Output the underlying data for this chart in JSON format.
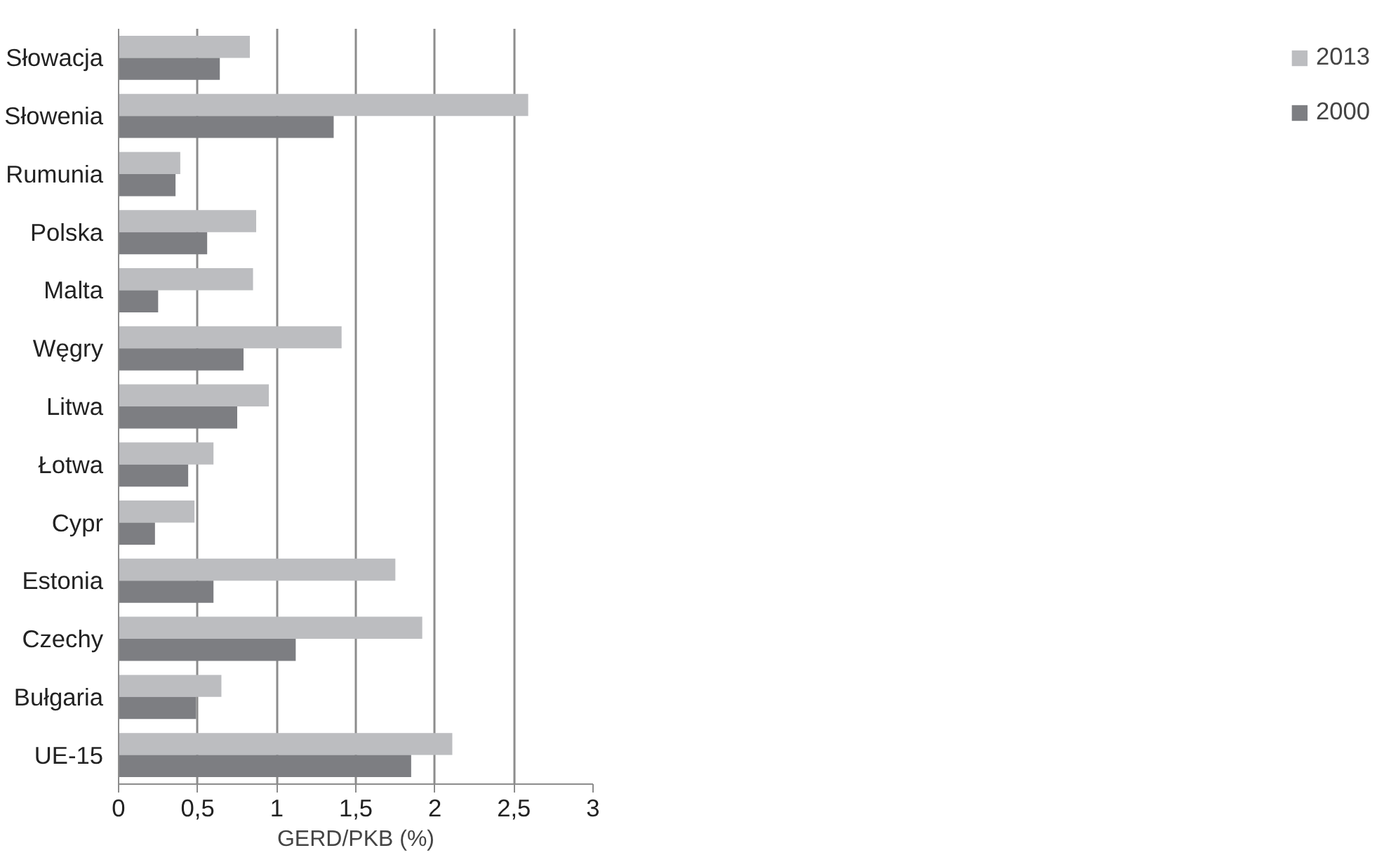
{
  "chart_data": {
    "type": "bar",
    "orientation": "horizontal",
    "xlabel": "GERD/PKB (%)",
    "categories": [
      "Słowacja",
      "Słowenia",
      "Rumunia",
      "Polska",
      "Malta",
      "Węgry",
      "Litwa",
      "Łotwa",
      "Cypr",
      "Estonia",
      "Czechy",
      "Bułgaria",
      "UE-15"
    ],
    "series": [
      {
        "name": "2013",
        "color": "#bcbdc0",
        "values": [
          0.83,
          2.59,
          0.39,
          0.87,
          0.85,
          1.41,
          0.95,
          0.6,
          0.48,
          1.75,
          1.92,
          0.65,
          2.11
        ]
      },
      {
        "name": "2000",
        "color": "#7d7e82",
        "values": [
          0.64,
          1.36,
          0.36,
          0.56,
          0.25,
          0.79,
          0.75,
          0.44,
          0.23,
          0.6,
          1.12,
          0.49,
          1.85
        ]
      }
    ],
    "xlim": [
      0,
      3
    ],
    "xticks": [
      0,
      {
        "value": 0.5,
        "label": "0,5"
      },
      1,
      {
        "value": 1.5,
        "label": "1,5"
      },
      2,
      {
        "value": 2.5,
        "label": "2,5"
      },
      3
    ],
    "grid": "x",
    "legend": "right"
  }
}
